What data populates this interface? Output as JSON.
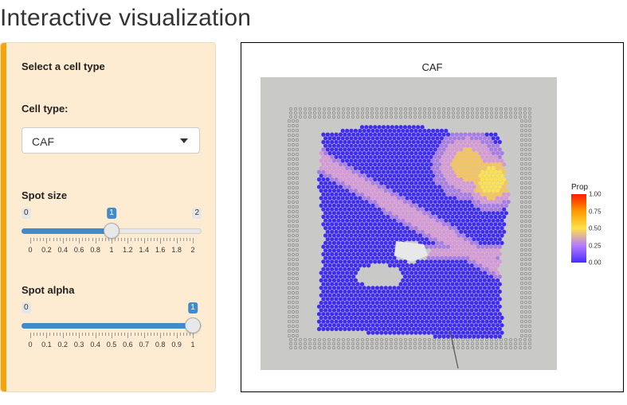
{
  "page": {
    "title": "Interactive visualization"
  },
  "sidebar": {
    "heading": "Select a cell type",
    "cell_type": {
      "label": "Cell type:",
      "selected": "CAF"
    },
    "spot_size": {
      "label": "Spot size",
      "min": "0",
      "max": "2",
      "value": "1",
      "value_fraction": 0.5,
      "ticks": [
        "0",
        "0.2",
        "0.4",
        "0.6",
        "0.8",
        "1",
        "1.2",
        "1.4",
        "1.6",
        "1.8",
        "2"
      ]
    },
    "spot_alpha": {
      "label": "Spot alpha",
      "min": "0",
      "max": "1",
      "value": "1",
      "value_fraction": 1.0,
      "ticks": [
        "0",
        "0.1",
        "0.2",
        "0.3",
        "0.4",
        "0.5",
        "0.6",
        "0.7",
        "0.8",
        "0.9",
        "1"
      ]
    }
  },
  "plot": {
    "title": "CAF",
    "legend": {
      "title": "Prop",
      "labels": [
        "1.00",
        "0.75",
        "0.50",
        "0.25",
        "0.00"
      ],
      "colors": [
        "#ff1a00",
        "#ff9a00",
        "#ffe14a",
        "#b57bff",
        "#4a2dff"
      ]
    },
    "colors": {
      "background": "#c9c9c7",
      "low": "#3d2bf2",
      "mid": "#c27fd9",
      "high": "#ffd93b"
    }
  }
}
